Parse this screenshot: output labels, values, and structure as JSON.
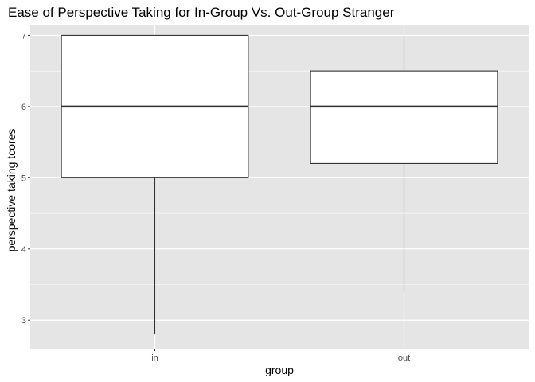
{
  "chart_data": {
    "type": "boxplot",
    "title": "Ease of Perspective Taking for In-Group Vs. Out-Group Stranger",
    "xlabel": "group",
    "ylabel": "perspective taking tcores",
    "categories": [
      "in",
      "out"
    ],
    "boxes": [
      {
        "category": "in",
        "min": 2.8,
        "q1": 5.0,
        "median": 6.0,
        "q3": 7.0,
        "max": 7.0
      },
      {
        "category": "out",
        "min": 3.4,
        "q1": 5.2,
        "median": 6.0,
        "q3": 6.5,
        "max": 7.0
      }
    ],
    "yticks": [
      3,
      4,
      5,
      6,
      7
    ],
    "ylim": [
      2.6,
      7.15
    ],
    "grid": true,
    "legend": "none",
    "colors": {
      "panel": "#e5e5e5",
      "grid_major": "#ffffff",
      "box_fill": "#ffffff",
      "box_stroke": "#333333"
    }
  }
}
